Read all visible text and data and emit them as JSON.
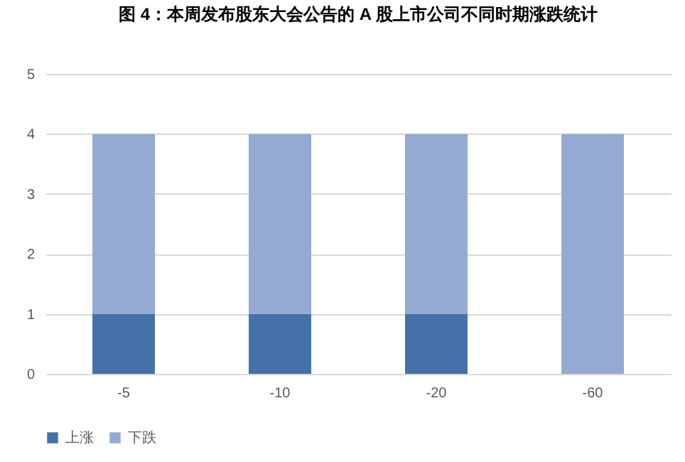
{
  "chart_data": {
    "type": "bar",
    "title": "图 4：本周发布股东大会公告的 A 股上市公司不同时期涨跌统计",
    "categories": [
      "-5",
      "-10",
      "-20",
      "-60"
    ],
    "stacked": true,
    "series": [
      {
        "name": "上涨",
        "color": "#4472a8",
        "values": [
          1,
          1,
          1,
          0
        ]
      },
      {
        "name": "下跌",
        "color": "#94aad2",
        "values": [
          3,
          3,
          3,
          4
        ]
      }
    ],
    "ylim": [
      0,
      5
    ],
    "yticks": [
      0,
      1,
      2,
      3,
      4,
      5
    ],
    "grid": "y",
    "legend": "bottom"
  }
}
